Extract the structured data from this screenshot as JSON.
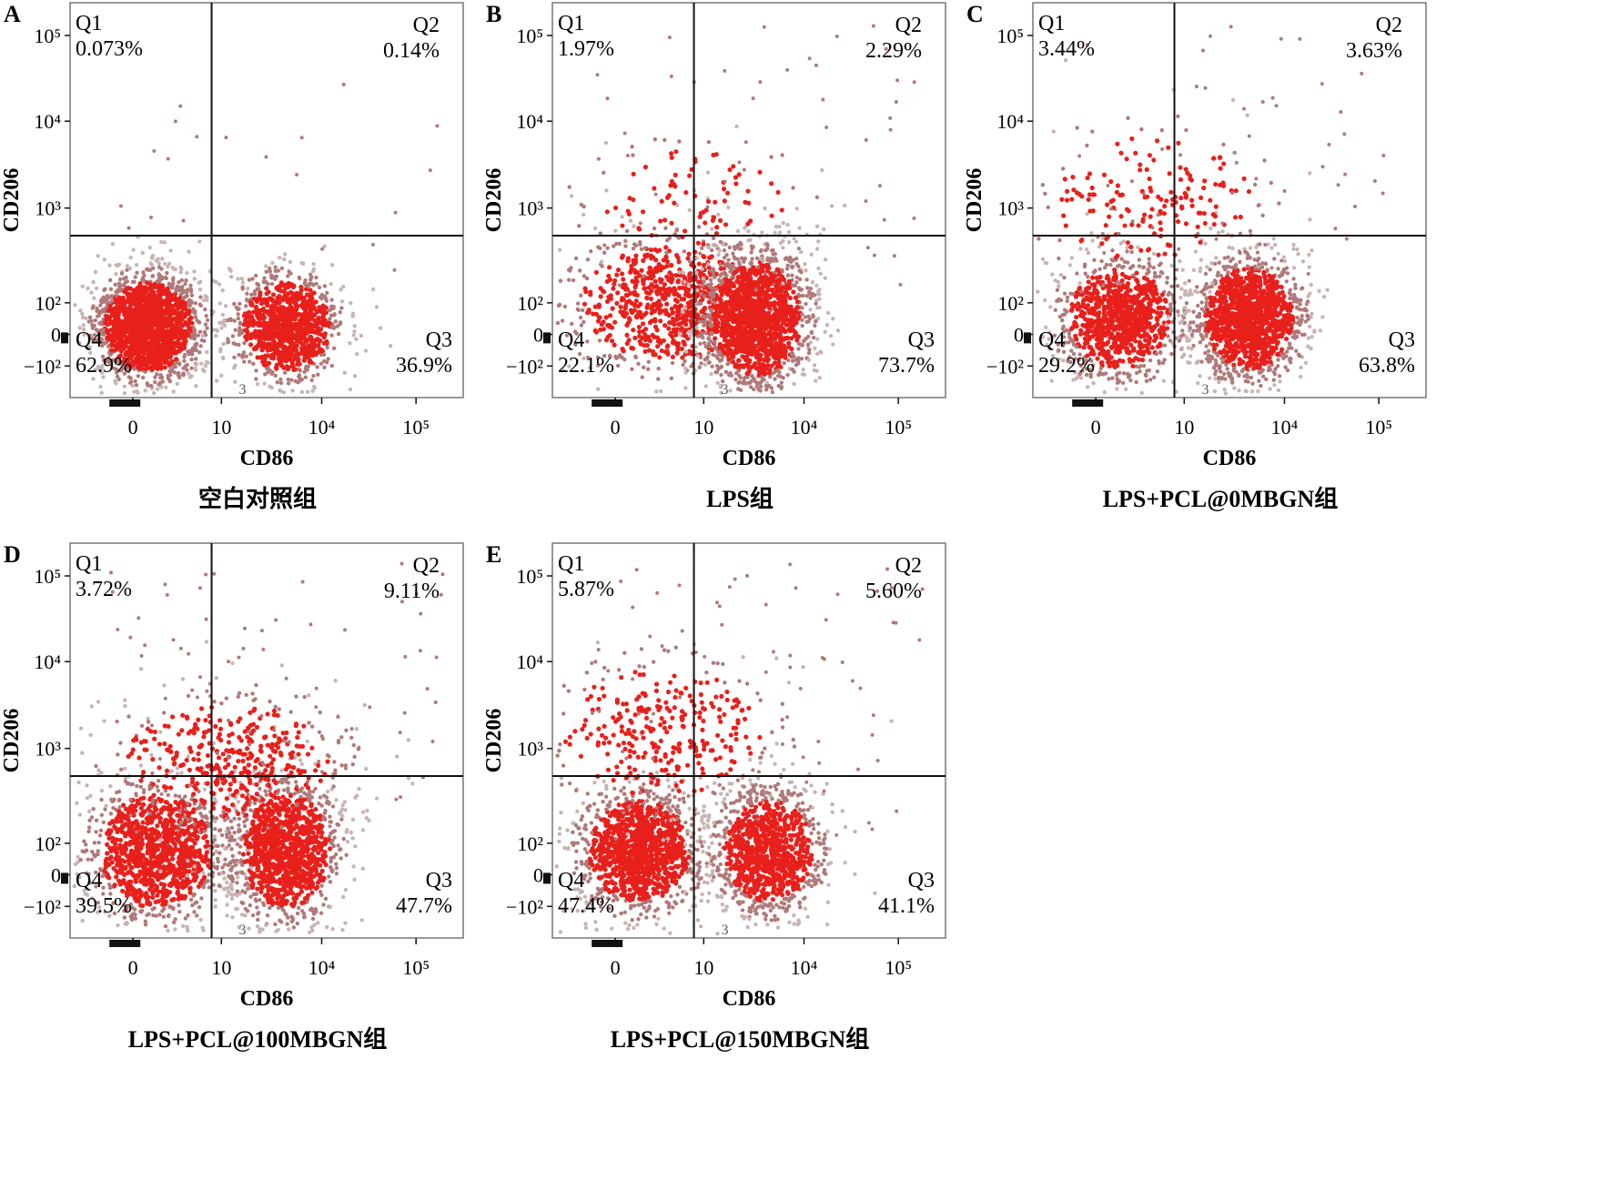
{
  "chart_data": [
    {
      "type": "scatter",
      "panel_label": "A",
      "caption": "空白对照组",
      "xlabel": "CD86",
      "ylabel": "CD206",
      "x_ticks": [
        "0",
        "10",
        "10⁴",
        "10⁵"
      ],
      "y_ticks": [
        "10⁵",
        "10⁴",
        "10³",
        "10²",
        "0",
        "−10²"
      ],
      "gate_marker": "3",
      "quadrants": [
        {
          "name": "Q1",
          "percent": "0.073%"
        },
        {
          "name": "Q2",
          "percent": "0.14%"
        },
        {
          "name": "Q3",
          "percent": "36.9%"
        },
        {
          "name": "Q4",
          "percent": "62.9%"
        }
      ],
      "clusters": [
        {
          "cx": 0.2,
          "cy": 0.82,
          "sx": 0.07,
          "sy": 0.07,
          "n": 1700
        },
        {
          "cx": 0.55,
          "cy": 0.82,
          "sx": 0.07,
          "sy": 0.07,
          "n": 1000
        }
      ],
      "scatter_points": 20
    },
    {
      "type": "scatter",
      "panel_label": "B",
      "caption": "LPS组",
      "xlabel": "CD86",
      "ylabel": "CD206",
      "x_ticks": [
        "0",
        "10",
        "10⁴",
        "10⁵"
      ],
      "y_ticks": [
        "10⁵",
        "10⁴",
        "10³",
        "10²",
        "0",
        "−10²"
      ],
      "gate_marker": "3",
      "quadrants": [
        {
          "name": "Q1",
          "percent": "1.97%"
        },
        {
          "name": "Q2",
          "percent": "2.29%"
        },
        {
          "name": "Q3",
          "percent": "73.7%"
        },
        {
          "name": "Q4",
          "percent": "22.1%"
        }
      ],
      "clusters": [
        {
          "cx": 0.3,
          "cy": 0.76,
          "sx": 0.14,
          "sy": 0.09,
          "n": 900
        },
        {
          "cx": 0.52,
          "cy": 0.8,
          "sx": 0.07,
          "sy": 0.09,
          "n": 1500
        },
        {
          "cx": 0.35,
          "cy": 0.5,
          "sx": 0.15,
          "sy": 0.08,
          "n": 110
        }
      ],
      "scatter_points": 50
    },
    {
      "type": "scatter",
      "panel_label": "C",
      "caption": "LPS+PCL@0MBGN组",
      "xlabel": "CD86",
      "ylabel": "CD206",
      "x_ticks": [
        "0",
        "10",
        "10⁴",
        "10⁵"
      ],
      "y_ticks": [
        "10⁵",
        "10⁴",
        "10³",
        "10²",
        "0",
        "−10²"
      ],
      "gate_marker": "3",
      "quadrants": [
        {
          "name": "Q1",
          "percent": "3.44%"
        },
        {
          "name": "Q2",
          "percent": "3.63%"
        },
        {
          "name": "Q3",
          "percent": "63.8%"
        },
        {
          "name": "Q4",
          "percent": "29.2%"
        }
      ],
      "clusters": [
        {
          "cx": 0.22,
          "cy": 0.8,
          "sx": 0.08,
          "sy": 0.08,
          "n": 1000
        },
        {
          "cx": 0.55,
          "cy": 0.8,
          "sx": 0.07,
          "sy": 0.08,
          "n": 1400
        },
        {
          "cx": 0.3,
          "cy": 0.5,
          "sx": 0.16,
          "sy": 0.1,
          "n": 200
        }
      ],
      "scatter_points": 60
    },
    {
      "type": "scatter",
      "panel_label": "D",
      "caption": "LPS+PCL@100MBGN组",
      "xlabel": "CD86",
      "ylabel": "CD206",
      "x_ticks": [
        "0",
        "10",
        "10⁴",
        "10⁵"
      ],
      "y_ticks": [
        "10⁵",
        "10⁴",
        "10³",
        "10²",
        "0",
        "−10²"
      ],
      "gate_marker": "3",
      "quadrants": [
        {
          "name": "Q1",
          "percent": "3.72%"
        },
        {
          "name": "Q2",
          "percent": "9.11%"
        },
        {
          "name": "Q3",
          "percent": "47.7%"
        },
        {
          "name": "Q4",
          "percent": "39.5%"
        }
      ],
      "clusters": [
        {
          "cx": 0.22,
          "cy": 0.78,
          "sx": 0.09,
          "sy": 0.09,
          "n": 1200
        },
        {
          "cx": 0.55,
          "cy": 0.78,
          "sx": 0.07,
          "sy": 0.09,
          "n": 1200
        },
        {
          "cx": 0.4,
          "cy": 0.55,
          "sx": 0.16,
          "sy": 0.09,
          "n": 450
        }
      ],
      "scatter_points": 90
    },
    {
      "type": "scatter",
      "panel_label": "E",
      "caption": "LPS+PCL@150MBGN组",
      "xlabel": "CD86",
      "ylabel": "CD206",
      "x_ticks": [
        "0",
        "10",
        "10⁴",
        "10⁵"
      ],
      "y_ticks": [
        "10⁵",
        "10⁴",
        "10³",
        "10²",
        "0",
        "−10²"
      ],
      "gate_marker": "3",
      "quadrants": [
        {
          "name": "Q1",
          "percent": "5.87%"
        },
        {
          "name": "Q2",
          "percent": "5.60%"
        },
        {
          "name": "Q3",
          "percent": "41.1%"
        },
        {
          "name": "Q4",
          "percent": "47.4%"
        }
      ],
      "clusters": [
        {
          "cx": 0.22,
          "cy": 0.78,
          "sx": 0.08,
          "sy": 0.08,
          "n": 1300
        },
        {
          "cx": 0.55,
          "cy": 0.78,
          "sx": 0.07,
          "sy": 0.08,
          "n": 1100
        },
        {
          "cx": 0.28,
          "cy": 0.48,
          "sx": 0.16,
          "sy": 0.1,
          "n": 350
        }
      ],
      "scatter_points": 80
    }
  ],
  "colors": {
    "dot_dense": "#e8201c",
    "dot_light": "#b07a7a",
    "dot_gray": "#c9b4b4",
    "axis": "#111111"
  }
}
